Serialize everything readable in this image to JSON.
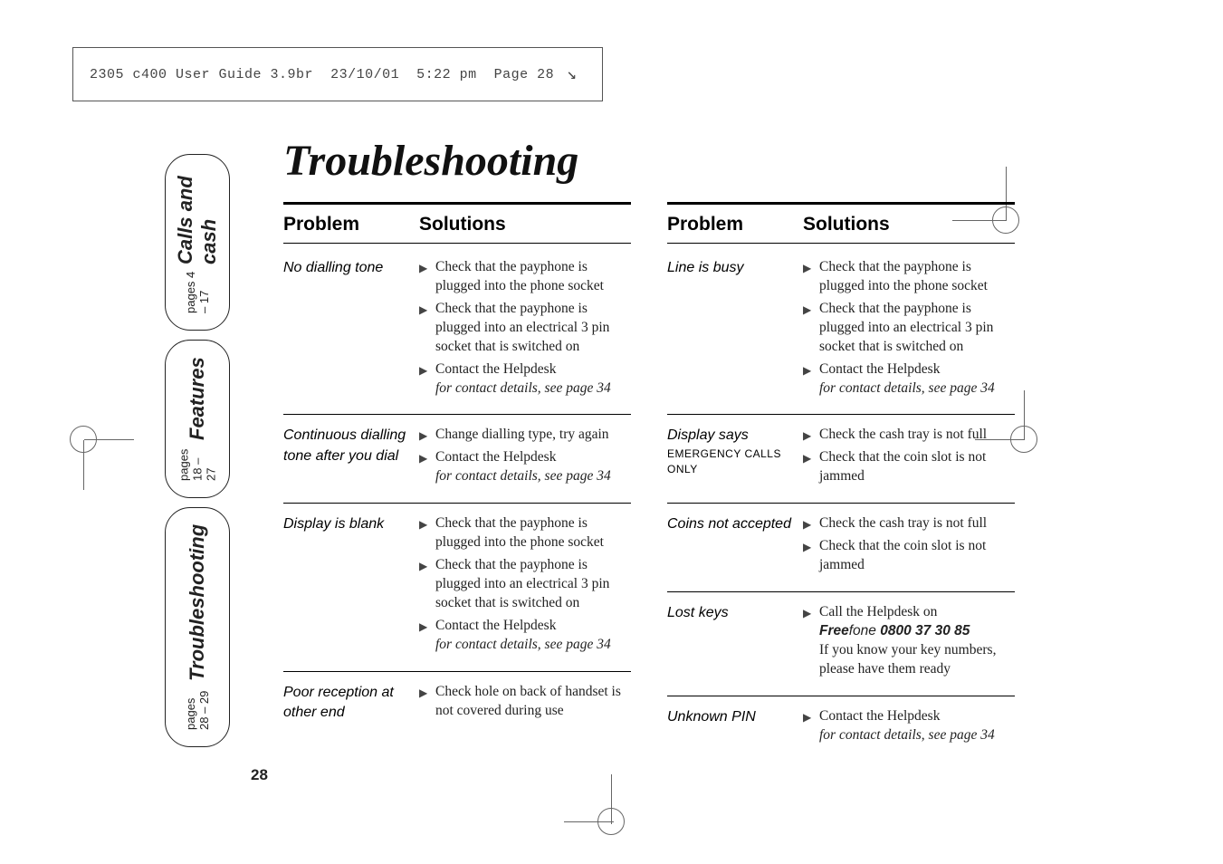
{
  "header": {
    "doc_name": "2305 c400 User Guide 3.9br",
    "date": "23/10/01",
    "time": "5:22 pm",
    "page_label": "Page 28"
  },
  "tabs": {
    "calls": {
      "title": "Calls and cash",
      "pages": "pages 4 – 17"
    },
    "features": {
      "title": "Features",
      "pages": "pages 18 – 27"
    },
    "trouble": {
      "title": "Troubleshooting",
      "pages": "pages 28 – 29"
    }
  },
  "page_number": "28",
  "main_title": "Troubleshooting",
  "table_headers": {
    "problem": "Problem",
    "solutions": "Solutions"
  },
  "left_sections": [
    {
      "problem": "No dialling tone",
      "solutions": [
        {
          "t": "Check that the payphone is plugged into the phone socket"
        },
        {
          "t": "Check that the payphone is plugged into an electrical 3 pin socket that is switched on"
        },
        {
          "t": "Contact the Helpdesk",
          "sub_ital": "for contact details, see page 34"
        }
      ]
    },
    {
      "problem": "Continuous dialling tone after you dial",
      "solutions": [
        {
          "t": "Change dialling type, try again"
        },
        {
          "t": "Contact the Helpdesk",
          "sub_ital": "for contact details, see page 34"
        }
      ]
    },
    {
      "problem": "Display is blank",
      "solutions": [
        {
          "t": "Check that the payphone is plugged into the phone socket"
        },
        {
          "t": "Check that the payphone is plugged into an electrical 3 pin socket that is switched on"
        },
        {
          "t": "Contact the Helpdesk",
          "sub_ital": "for contact details, see page 34"
        }
      ]
    },
    {
      "problem": "Poor reception at other end",
      "solutions": [
        {
          "t": "Check hole on back of handset is not covered during use"
        }
      ],
      "no_border": true
    }
  ],
  "right_sections": [
    {
      "problem": "Line is busy",
      "solutions": [
        {
          "t": "Check that the payphone is plugged into the phone socket"
        },
        {
          "t": "Check that the payphone is plugged into an electrical 3 pin socket that is switched on"
        },
        {
          "t": "Contact the Helpdesk",
          "sub_ital": "for contact details, see page 34"
        }
      ]
    },
    {
      "problem": "Display says",
      "problem_lcd": "EMERGENCY CALLS ONLY",
      "solutions": [
        {
          "t": "Check the cash tray is not full"
        },
        {
          "t": "Check that the coin slot is not jammed"
        }
      ]
    },
    {
      "problem": "Coins not accepted",
      "solutions": [
        {
          "t": "Check the cash tray is not full"
        },
        {
          "t": "Check that the coin slot is not jammed"
        }
      ]
    },
    {
      "problem": "Lost keys",
      "solutions": [
        {
          "t": "Call the Helpdesk on",
          "freefone": "0800 37 30 85",
          "sub_plain": "If you know your key numbers, please have them ready"
        }
      ]
    },
    {
      "problem": "Unknown PIN",
      "solutions": [
        {
          "t": "Contact the Helpdesk",
          "sub_ital": "for contact details, see page 34"
        }
      ],
      "no_border": true
    }
  ]
}
